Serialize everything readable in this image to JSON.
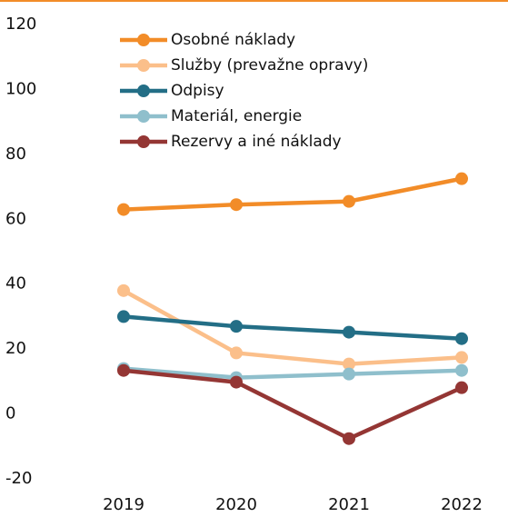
{
  "chart_data": {
    "type": "line",
    "categories": [
      "2019",
      "2020",
      "2021",
      "2022"
    ],
    "series": [
      {
        "name": "Osobné náklady",
        "color": "#f28c28",
        "values": [
          63,
          64.5,
          65.5,
          72.5
        ]
      },
      {
        "name": "Služby (prevažne opravy)",
        "color": "#fbbf8a",
        "values": [
          38,
          18.8,
          15.4,
          17.4
        ]
      },
      {
        "name": "Odpisy",
        "color": "#236e86",
        "values": [
          30,
          27,
          25.2,
          23.2
        ]
      },
      {
        "name": "Materiál, energie",
        "color": "#8fbfcc",
        "values": [
          14,
          11.2,
          12.3,
          13.4
        ]
      },
      {
        "name": "Rezervy a iné náklady",
        "color": "#943634",
        "values": [
          13.4,
          9.8,
          -7.6,
          8.1
        ]
      }
    ],
    "ylim": [
      -20,
      120
    ],
    "yticks": [
      -20,
      0,
      20,
      40,
      60,
      80,
      100,
      120
    ]
  }
}
